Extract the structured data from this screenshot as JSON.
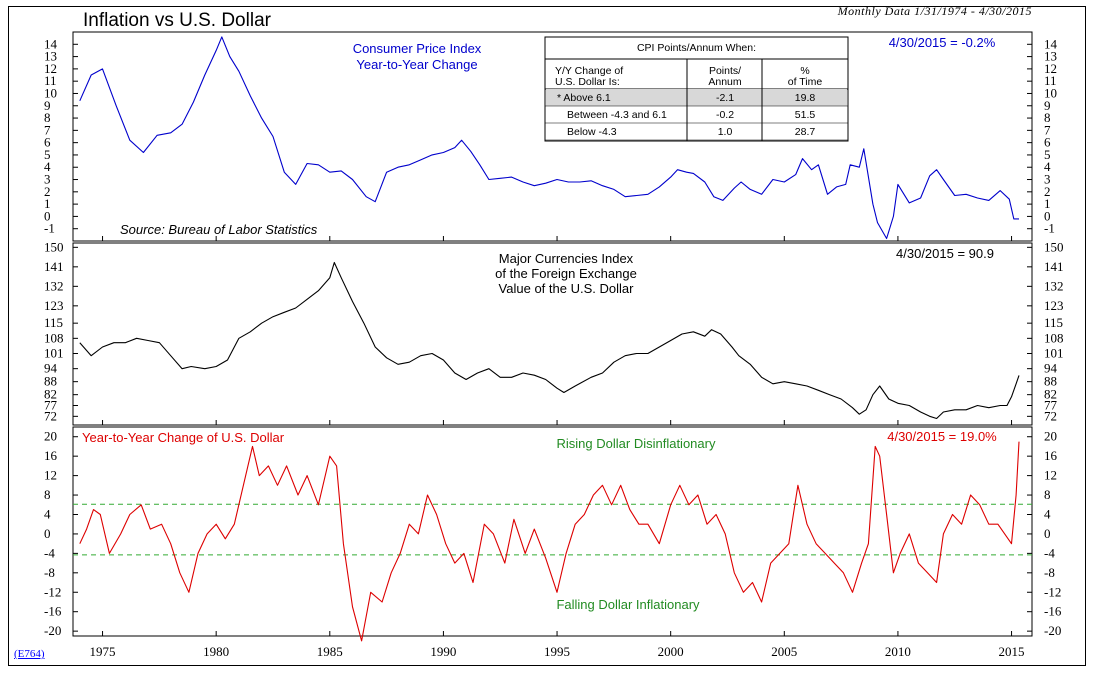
{
  "title": "Inflation vs U.S. Dollar",
  "date_range": "Monthly Data 1/31/1974 - 4/30/2015",
  "chart_code": "(E764)",
  "colors": {
    "cpi": "#0000cc",
    "dollar": "#000000",
    "yoy": "#dd0000",
    "zone_lines": "#33aa33",
    "label_green": "#228b22",
    "label_blue": "#0000cc",
    "label_red": "#dd0000"
  },
  "chart_data": [
    {
      "type": "line",
      "name": "cpi",
      "title": "Consumer Price Index",
      "subtitle": "Year-to-Year Change",
      "source": "Source: Bureau of Labor Statistics",
      "latest": "4/30/2015 = -0.2%",
      "ylim": [
        -2,
        15
      ],
      "yticks": [
        -1,
        0,
        1,
        2,
        3,
        4,
        5,
        6,
        7,
        8,
        9,
        10,
        11,
        12,
        13,
        14
      ],
      "series": [
        {
          "x": [
            1974.0,
            1974.5,
            1975.0,
            1975.6,
            1976.2,
            1976.8,
            1977.4,
            1978.0,
            1978.5,
            1979.0,
            1979.5,
            1980.0,
            1980.25,
            1980.6,
            1981.0,
            1981.5,
            1982.0,
            1982.5,
            1983.0,
            1983.5,
            1984.0,
            1984.5,
            1985.0,
            1985.5,
            1986.0,
            1986.6,
            1987.0,
            1987.5,
            1988.0,
            1988.5,
            1989.0,
            1989.5,
            1990.0,
            1990.5,
            1990.8,
            1991.2,
            1991.6,
            1992.0,
            1992.5,
            1993.0,
            1993.5,
            1994.0,
            1994.5,
            1995.0,
            1995.5,
            1996.0,
            1996.5,
            1997.0,
            1997.5,
            1998.0,
            1998.5,
            1999.0,
            1999.5,
            2000.0,
            2000.3,
            2000.7,
            2001.0,
            2001.5,
            2001.9,
            2002.3,
            2002.8,
            2003.1,
            2003.5,
            2004.0,
            2004.5,
            2005.0,
            2005.5,
            2005.8,
            2006.2,
            2006.5,
            2006.9,
            2007.3,
            2007.7,
            2007.9,
            2008.3,
            2008.5,
            2008.9,
            2009.1,
            2009.5,
            2009.8,
            2010.0,
            2010.5,
            2011.0,
            2011.4,
            2011.7,
            2012.0,
            2012.5,
            2013.0,
            2013.5,
            2014.0,
            2014.5,
            2014.9,
            2015.1,
            2015.33
          ],
          "y": [
            9.4,
            11.5,
            12.0,
            9.0,
            6.2,
            5.2,
            6.6,
            6.8,
            7.5,
            9.3,
            11.5,
            13.5,
            14.6,
            13.0,
            11.8,
            9.8,
            8.0,
            6.5,
            3.6,
            2.6,
            4.3,
            4.2,
            3.6,
            3.7,
            3.0,
            1.6,
            1.2,
            3.6,
            4.0,
            4.2,
            4.6,
            5.0,
            5.2,
            5.6,
            6.2,
            5.3,
            4.2,
            3.0,
            3.1,
            3.2,
            2.8,
            2.5,
            2.7,
            3.0,
            2.8,
            2.8,
            2.9,
            2.5,
            2.2,
            1.6,
            1.7,
            1.8,
            2.4,
            3.2,
            3.8,
            3.6,
            3.5,
            2.8,
            1.6,
            1.3,
            2.3,
            2.8,
            2.2,
            1.8,
            3.0,
            2.8,
            3.4,
            4.7,
            3.8,
            4.2,
            1.8,
            2.4,
            2.6,
            4.2,
            4.0,
            5.5,
            1.0,
            -0.5,
            -1.8,
            0.0,
            2.6,
            1.1,
            1.5,
            3.3,
            3.8,
            3.0,
            1.7,
            1.8,
            1.5,
            1.3,
            2.1,
            1.4,
            -0.2,
            -0.2
          ]
        }
      ]
    },
    {
      "type": "line",
      "name": "dollar",
      "title": "Major Currencies Index",
      "subtitle": "of the Foreign Exchange",
      "subtitle2": "Value of the U.S. Dollar",
      "latest": "4/30/2015 = 90.9",
      "ylim": [
        68,
        152
      ],
      "yticks": [
        72,
        77,
        82,
        88,
        94,
        101,
        108,
        115,
        123,
        132,
        141,
        150
      ],
      "series": [
        {
          "x": [
            1974.0,
            1974.5,
            1975.0,
            1975.5,
            1976.0,
            1976.5,
            1977.0,
            1977.5,
            1978.0,
            1978.5,
            1978.9,
            1979.5,
            1980.0,
            1980.5,
            1981.0,
            1981.5,
            1982.0,
            1982.5,
            1983.0,
            1983.5,
            1984.0,
            1984.5,
            1985.0,
            1985.2,
            1985.5,
            1986.0,
            1986.5,
            1987.0,
            1987.5,
            1988.0,
            1988.5,
            1989.0,
            1989.5,
            1990.0,
            1990.5,
            1991.0,
            1991.5,
            1992.0,
            1992.5,
            1993.0,
            1993.5,
            1994.0,
            1994.5,
            1995.0,
            1995.3,
            1995.8,
            1996.5,
            1997.0,
            1997.5,
            1998.0,
            1998.5,
            1999.0,
            1999.5,
            2000.0,
            2000.5,
            2001.0,
            2001.5,
            2001.8,
            2002.2,
            2002.7,
            2003.0,
            2003.5,
            2004.0,
            2004.5,
            2005.0,
            2005.5,
            2006.0,
            2006.5,
            2007.0,
            2007.5,
            2008.0,
            2008.3,
            2008.6,
            2008.9,
            2009.2,
            2009.6,
            2010.0,
            2010.5,
            2011.0,
            2011.4,
            2011.7,
            2012.0,
            2012.5,
            2013.0,
            2013.5,
            2014.0,
            2014.5,
            2014.8,
            2015.0,
            2015.2,
            2015.33
          ],
          "y": [
            106,
            100,
            104,
            106,
            106,
            108,
            107,
            106,
            100,
            94,
            95,
            94,
            95,
            98,
            108,
            111,
            115,
            118,
            120,
            122,
            126,
            130,
            136,
            143,
            136,
            125,
            115,
            104,
            99,
            96,
            97,
            100,
            101,
            98,
            92,
            89,
            92,
            94,
            90,
            90,
            92,
            91,
            89,
            85,
            83,
            86,
            90,
            92,
            97,
            100,
            101,
            101,
            104,
            107,
            110,
            111,
            109,
            112,
            110,
            104,
            100,
            96,
            90,
            87,
            88,
            87,
            86,
            84,
            82,
            80,
            76,
            73,
            75,
            82,
            86,
            80,
            78,
            77,
            74,
            72,
            71,
            74,
            75,
            75,
            77,
            76,
            77,
            77,
            81,
            87,
            90.9
          ]
        }
      ]
    },
    {
      "type": "line",
      "name": "yoy",
      "title": "Year-to-Year Change of U.S. Dollar",
      "latest": "4/30/2015 = 19.0%",
      "annotation_top": "Rising Dollar Disinflationary",
      "annotation_bottom": "Falling Dollar Inflationary",
      "ylim": [
        -21,
        22
      ],
      "yticks": [
        -20,
        -16,
        -12,
        -8,
        -4,
        0,
        4,
        8,
        12,
        16,
        20
      ],
      "reference_lines": [
        6.1,
        -4.3
      ],
      "xlim": [
        1973.7,
        2015.9
      ],
      "xticks": [
        1975,
        1980,
        1985,
        1990,
        1995,
        2000,
        2005,
        2010,
        2015
      ],
      "series": [
        {
          "x": [
            1974.0,
            1974.3,
            1974.6,
            1974.9,
            1975.3,
            1975.8,
            1976.2,
            1976.7,
            1977.1,
            1977.6,
            1978.0,
            1978.4,
            1978.8,
            1979.2,
            1979.6,
            1980.0,
            1980.4,
            1980.8,
            1981.2,
            1981.6,
            1981.9,
            1982.3,
            1982.7,
            1983.1,
            1983.6,
            1984.0,
            1984.5,
            1985.0,
            1985.3,
            1985.6,
            1986.0,
            1986.4,
            1986.8,
            1987.3,
            1987.7,
            1988.1,
            1988.5,
            1988.9,
            1989.3,
            1989.7,
            1990.1,
            1990.5,
            1990.9,
            1991.3,
            1991.8,
            1992.2,
            1992.7,
            1993.1,
            1993.6,
            1994.0,
            1994.5,
            1995.0,
            1995.4,
            1995.8,
            1996.2,
            1996.6,
            1997.0,
            1997.4,
            1997.8,
            1998.2,
            1998.6,
            1999.0,
            1999.5,
            2000.0,
            2000.4,
            2000.8,
            2001.2,
            2001.6,
            2002.0,
            2002.4,
            2002.8,
            2003.2,
            2003.6,
            2004.0,
            2004.4,
            2004.8,
            2005.2,
            2005.6,
            2006.0,
            2006.4,
            2006.8,
            2007.2,
            2007.6,
            2008.0,
            2008.4,
            2008.7,
            2009.0,
            2009.2,
            2009.5,
            2009.8,
            2010.1,
            2010.5,
            2010.9,
            2011.3,
            2011.7,
            2012.0,
            2012.4,
            2012.8,
            2013.2,
            2013.6,
            2014.0,
            2014.4,
            2014.7,
            2015.0,
            2015.2,
            2015.33
          ],
          "y": [
            -2,
            1,
            5,
            4,
            -4,
            0,
            4,
            6,
            1,
            2,
            -2,
            -8,
            -12,
            -4,
            0,
            2,
            -1,
            2,
            10,
            18,
            12,
            14,
            10,
            14,
            8,
            12,
            6,
            16,
            14,
            -2,
            -15,
            -22,
            -12,
            -14,
            -8,
            -4,
            2,
            0,
            8,
            4,
            -2,
            -6,
            -4,
            -10,
            2,
            0,
            -6,
            3,
            -4,
            1,
            -5,
            -12,
            -4,
            2,
            4,
            8,
            10,
            6,
            10,
            5,
            2,
            2,
            -2,
            6,
            10,
            6,
            8,
            2,
            4,
            0,
            -8,
            -12,
            -10,
            -14,
            -6,
            -4,
            -2,
            10,
            2,
            -2,
            -4,
            -6,
            -8,
            -12,
            -6,
            -2,
            18,
            16,
            4,
            -8,
            -4,
            0,
            -6,
            -8,
            -10,
            0,
            4,
            2,
            8,
            6,
            2,
            2,
            0,
            -2,
            8,
            19
          ]
        }
      ]
    }
  ],
  "table": {
    "title": "CPI Points/Annum When:",
    "col_headers": [
      [
        "Y/Y Change of",
        "U.S. Dollar Is:"
      ],
      [
        "Points/",
        "Annum"
      ],
      [
        "%",
        "of Time"
      ]
    ],
    "rows": [
      {
        "label": "* Above 6.1",
        "points": "-2.1",
        "pct": "19.8",
        "highlight": true
      },
      {
        "label": "Between -4.3 and 6.1",
        "points": "-0.2",
        "pct": "51.5",
        "highlight": false
      },
      {
        "label": "Below -4.3",
        "points": "1.0",
        "pct": "28.7",
        "highlight": false
      }
    ]
  }
}
